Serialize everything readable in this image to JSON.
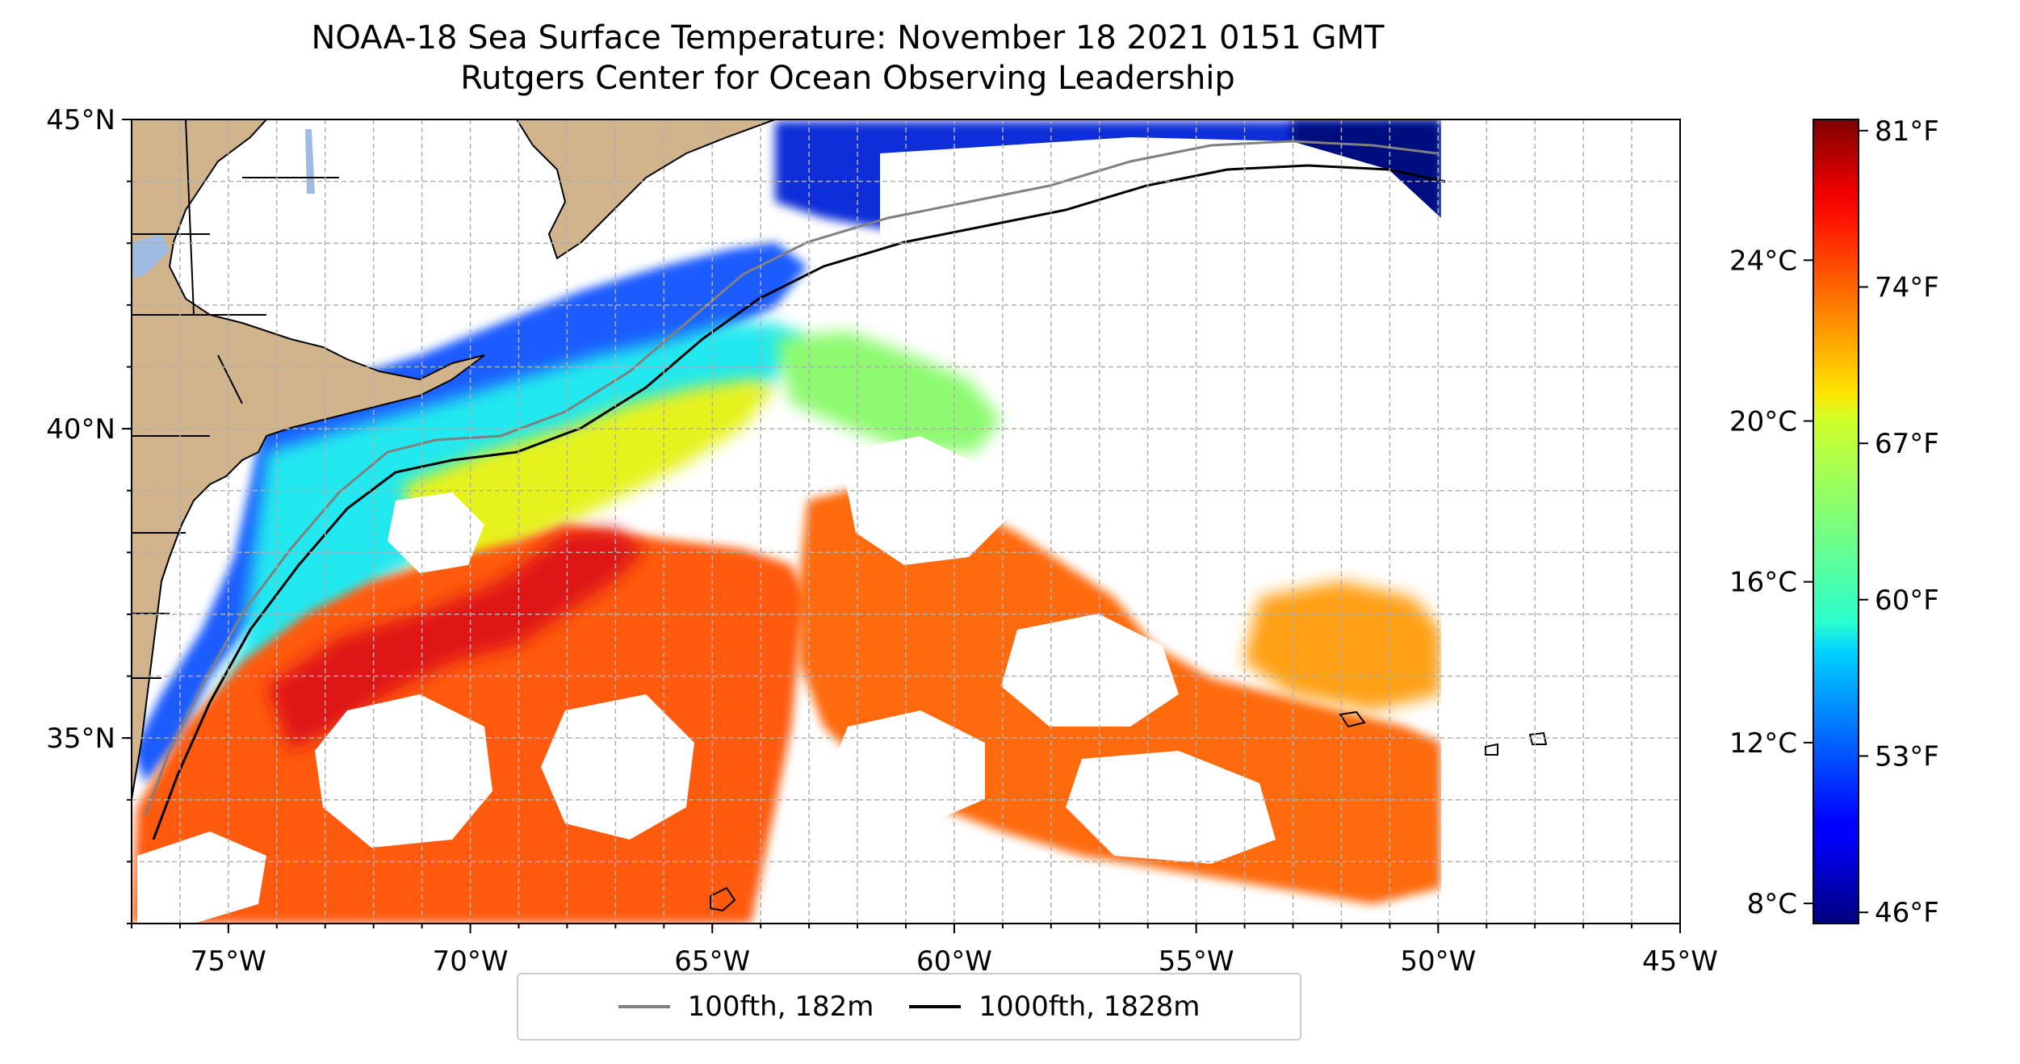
{
  "title": "NOAA-18 Sea Surface Temperature: November 18 2021 0151 GMT",
  "subtitle": "Rutgers Center for Ocean Observing Leadership",
  "map": {
    "lon_range": [
      -77,
      -45
    ],
    "lat_range": [
      32,
      45
    ],
    "lon_ticks": [
      {
        "value": -75,
        "label": "75°W"
      },
      {
        "value": -70,
        "label": "70°W"
      },
      {
        "value": -65,
        "label": "65°W"
      },
      {
        "value": -60,
        "label": "60°W"
      },
      {
        "value": -55,
        "label": "55°W"
      },
      {
        "value": -50,
        "label": "50°W"
      },
      {
        "value": -45,
        "label": "45°W"
      }
    ],
    "lat_ticks": [
      {
        "value": 45,
        "label": "45°N"
      },
      {
        "value": 40,
        "label": "40°N"
      },
      {
        "value": 35,
        "label": "35°N"
      }
    ],
    "grid": true,
    "data_east_limit_lon": -50,
    "colors": {
      "land": "#d2b48c",
      "lakes": "#9dbbe3",
      "isobath_100": "#808080",
      "isobath_1000": "#000000",
      "grid": "#b0b0b0"
    }
  },
  "legend": {
    "placement": "bottom-center",
    "items": [
      {
        "label": "100fth, 182m",
        "color": "#808080"
      },
      {
        "label": "1000fth, 1828m",
        "color": "#000000"
      }
    ]
  },
  "colorbar": {
    "colormap": "jet",
    "range_c": [
      7.5,
      27.5
    ],
    "celsius_ticks": [
      {
        "value": 8,
        "label": "8°C"
      },
      {
        "value": 12,
        "label": "12°C"
      },
      {
        "value": 16,
        "label": "16°C"
      },
      {
        "value": 20,
        "label": "20°C"
      },
      {
        "value": 24,
        "label": "24°C"
      }
    ],
    "fahrenheit_ticks": [
      {
        "value": 46,
        "label": "46°F"
      },
      {
        "value": 53,
        "label": "53°F"
      },
      {
        "value": 60,
        "label": "60°F"
      },
      {
        "value": 67,
        "label": "67°F"
      },
      {
        "value": 74,
        "label": "74°F"
      },
      {
        "value": 81,
        "label": "81°F"
      }
    ]
  }
}
